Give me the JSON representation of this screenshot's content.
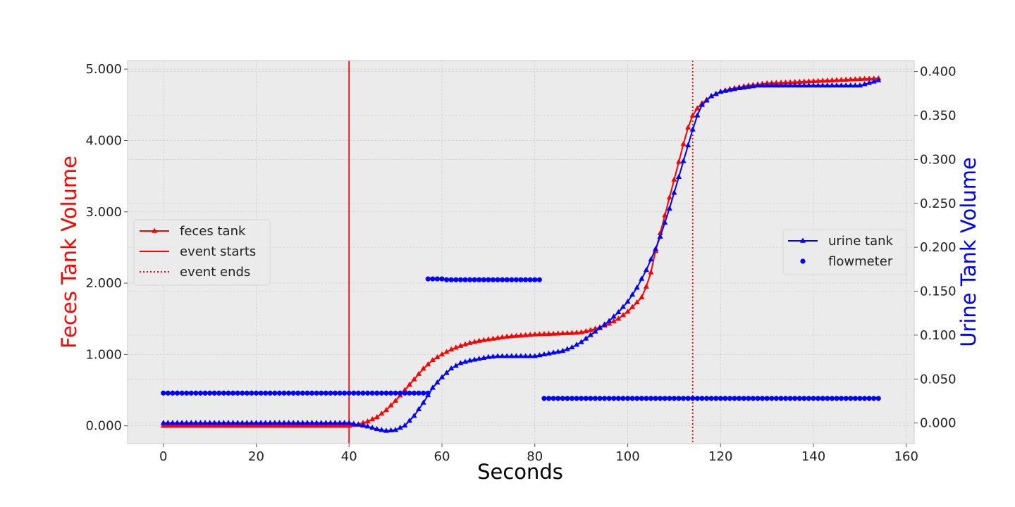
{
  "chart_data": {
    "type": "line",
    "xlabel": "Seconds",
    "ylabel_left": "Feces Tank Volume",
    "ylabel_right": "Urine Tank Volume",
    "ylabel_left_color": "#ff0000",
    "ylabel_right_color": "#0000ff",
    "xlim": [
      -7.7,
      161.7
    ],
    "ylim_left": [
      -0.25,
      5.12
    ],
    "ylim_right": [
      -0.0235,
      0.4125
    ],
    "xticks": [
      0,
      20,
      40,
      60,
      80,
      100,
      120,
      140,
      160
    ],
    "xtick_labels": [
      "0",
      "20",
      "40",
      "60",
      "80",
      "100",
      "120",
      "140",
      "160"
    ],
    "yticks_left": [
      0,
      1,
      2,
      3,
      4,
      5
    ],
    "ytick_labels_left": [
      "0.000",
      "1.000",
      "2.000",
      "3.000",
      "4.000",
      "5.000"
    ],
    "yticks_right": [
      0,
      0.05,
      0.1,
      0.15,
      0.2,
      0.25,
      0.3,
      0.35,
      0.4
    ],
    "ytick_labels_right": [
      "0.000",
      "0.050",
      "0.100",
      "0.150",
      "0.200",
      "0.250",
      "0.300",
      "0.350",
      "0.400"
    ],
    "grid": true,
    "background": "#ebebeb",
    "x_sampling": {
      "start": 0,
      "end": 154,
      "step": 1
    },
    "series": [
      {
        "name": "feces tank",
        "axis": "left",
        "color": "#ff0000",
        "marker": "triangle",
        "keypoints": [
          [
            0,
            0
          ],
          [
            40,
            0
          ],
          [
            42,
            0.02
          ],
          [
            44,
            0.06
          ],
          [
            46,
            0.12
          ],
          [
            48,
            0.22
          ],
          [
            50,
            0.35
          ],
          [
            52,
            0.5
          ],
          [
            54,
            0.65
          ],
          [
            56,
            0.8
          ],
          [
            58,
            0.92
          ],
          [
            60,
            1.0
          ],
          [
            62,
            1.07
          ],
          [
            64,
            1.12
          ],
          [
            66,
            1.16
          ],
          [
            68,
            1.19
          ],
          [
            70,
            1.21
          ],
          [
            72,
            1.23
          ],
          [
            74,
            1.25
          ],
          [
            76,
            1.26
          ],
          [
            78,
            1.27
          ],
          [
            80,
            1.28
          ],
          [
            84,
            1.29
          ],
          [
            88,
            1.3
          ],
          [
            90,
            1.31
          ],
          [
            92,
            1.34
          ],
          [
            94,
            1.38
          ],
          [
            96,
            1.43
          ],
          [
            98,
            1.5
          ],
          [
            100,
            1.6
          ],
          [
            102,
            1.73
          ],
          [
            103,
            1.8
          ],
          [
            104,
            1.95
          ],
          [
            105,
            2.15
          ],
          [
            106,
            2.45
          ],
          [
            107,
            2.7
          ],
          [
            108,
            2.95
          ],
          [
            109,
            3.2
          ],
          [
            110,
            3.45
          ],
          [
            111,
            3.7
          ],
          [
            112,
            3.95
          ],
          [
            113,
            4.18
          ],
          [
            114,
            4.35
          ],
          [
            115,
            4.45
          ],
          [
            116,
            4.52
          ],
          [
            118,
            4.62
          ],
          [
            120,
            4.68
          ],
          [
            122,
            4.72
          ],
          [
            126,
            4.77
          ],
          [
            130,
            4.8
          ],
          [
            140,
            4.83
          ],
          [
            150,
            4.86
          ],
          [
            154,
            4.87
          ]
        ]
      },
      {
        "name": "urine tank",
        "axis": "right",
        "color": "#0000ff",
        "marker": "triangle",
        "keypoints": [
          [
            0,
            0.0
          ],
          [
            40,
            0.0
          ],
          [
            42,
            -0.002
          ],
          [
            44,
            -0.004
          ],
          [
            46,
            -0.007
          ],
          [
            48,
            -0.009
          ],
          [
            50,
            -0.008
          ],
          [
            52,
            -0.003
          ],
          [
            54,
            0.008
          ],
          [
            56,
            0.023
          ],
          [
            58,
            0.04
          ],
          [
            60,
            0.052
          ],
          [
            62,
            0.062
          ],
          [
            64,
            0.068
          ],
          [
            66,
            0.071
          ],
          [
            68,
            0.073
          ],
          [
            70,
            0.075
          ],
          [
            72,
            0.076
          ],
          [
            80,
            0.076
          ],
          [
            82,
            0.078
          ],
          [
            84,
            0.08
          ],
          [
            86,
            0.082
          ],
          [
            88,
            0.086
          ],
          [
            90,
            0.092
          ],
          [
            92,
            0.1
          ],
          [
            94,
            0.108
          ],
          [
            96,
            0.116
          ],
          [
            98,
            0.126
          ],
          [
            100,
            0.138
          ],
          [
            102,
            0.154
          ],
          [
            104,
            0.174
          ],
          [
            106,
            0.198
          ],
          [
            107,
            0.212
          ],
          [
            108,
            0.228
          ],
          [
            109,
            0.244
          ],
          [
            110,
            0.262
          ],
          [
            111,
            0.28
          ],
          [
            112,
            0.298
          ],
          [
            113,
            0.316
          ],
          [
            114,
            0.334
          ],
          [
            115,
            0.35
          ],
          [
            116,
            0.362
          ],
          [
            118,
            0.372
          ],
          [
            120,
            0.377
          ],
          [
            124,
            0.381
          ],
          [
            128,
            0.384
          ],
          [
            140,
            0.384
          ],
          [
            150,
            0.384
          ],
          [
            154,
            0.39
          ]
        ]
      },
      {
        "name": "flowmeter",
        "axis": "right",
        "color": "#0000ff",
        "marker": "dot",
        "segments": [
          {
            "x_start": 0,
            "x_end": 57,
            "value": 0.034
          },
          {
            "x_start": 57,
            "x_end": 60,
            "value": 0.164
          },
          {
            "x_start": 61,
            "x_end": 81,
            "value": 0.163
          },
          {
            "x_start": 82,
            "x_end": 154,
            "value": 0.028
          }
        ]
      }
    ],
    "vlines": [
      {
        "name": "event starts",
        "x": 40,
        "color": "#ff0000",
        "style": "solid"
      },
      {
        "name": "event ends",
        "x": 114,
        "color": "#ff0000",
        "style": "dotted"
      }
    ],
    "legend_left": {
      "placement": "center-left",
      "entries": [
        {
          "label": "feces tank",
          "color": "#ff0000",
          "style": "solid",
          "marker": "triangle"
        },
        {
          "label": "event starts",
          "color": "#ff0000",
          "style": "solid",
          "marker": "none"
        },
        {
          "label": "event ends",
          "color": "#ff0000",
          "style": "dotted",
          "marker": "none"
        }
      ]
    },
    "legend_right": {
      "placement": "center-right",
      "entries": [
        {
          "label": "urine tank",
          "color": "#0000ff",
          "style": "solid",
          "marker": "triangle"
        },
        {
          "label": "flowmeter",
          "color": "#0000ff",
          "style": "none",
          "marker": "dot"
        }
      ]
    }
  }
}
